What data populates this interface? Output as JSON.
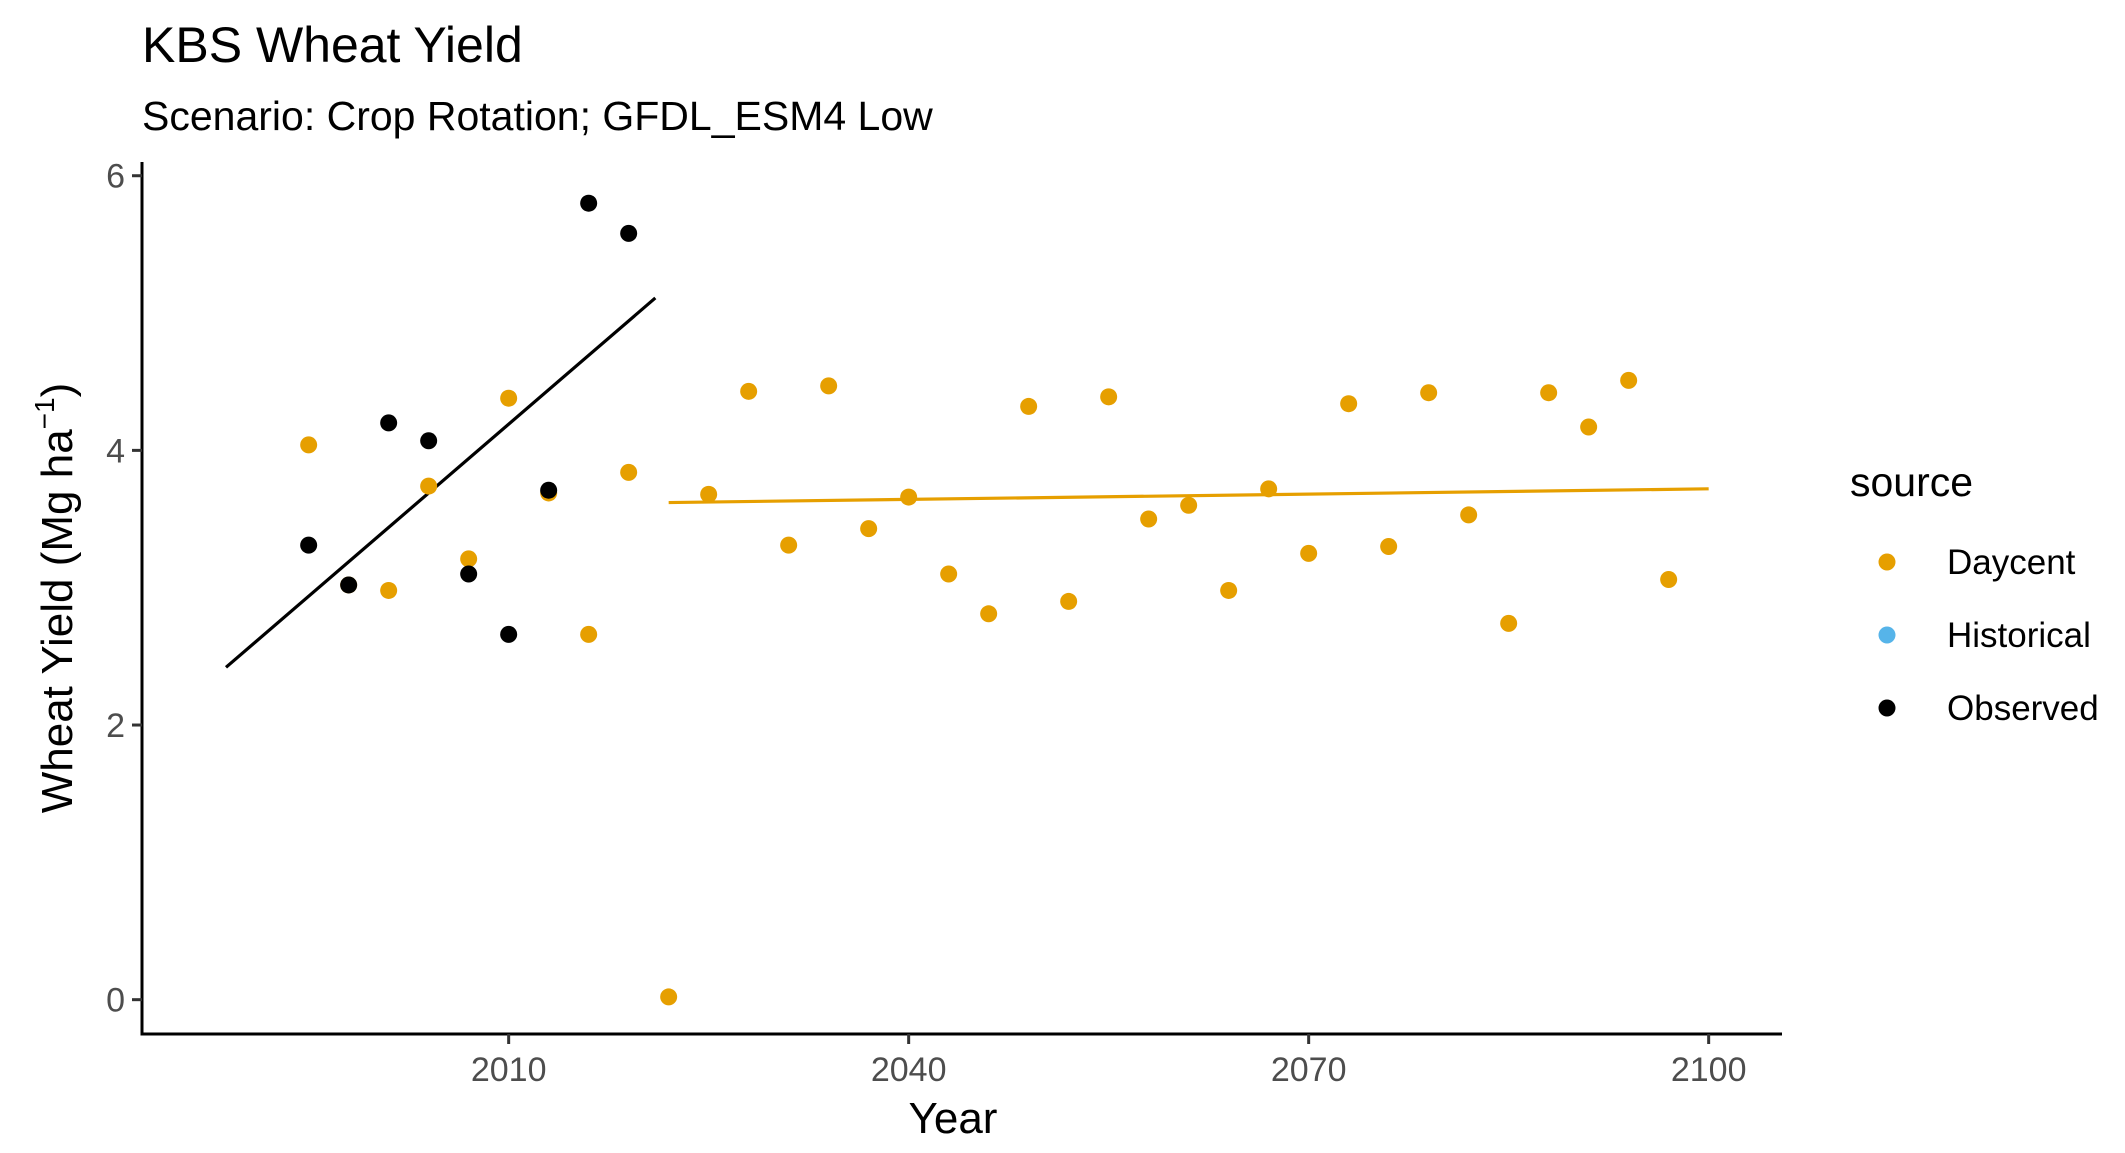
{
  "chart_data": {
    "type": "scatter",
    "title": "KBS Wheat Yield",
    "subtitle": "Scenario: Crop Rotation; GFDL_ESM4 Low",
    "xlabel": "Year",
    "ylabel_main": "Wheat Yield (Mg ha",
    "ylabel_sup": "−1",
    "ylabel_close": ")",
    "xlim": [
      1982.5,
      2105.5
    ],
    "ylim": [
      -0.25,
      6.1
    ],
    "x_ticks": [
      2010,
      2040,
      2070,
      2100
    ],
    "y_ticks": [
      0,
      2,
      4,
      6
    ],
    "grid": false,
    "legend": {
      "title": "source",
      "position": "right"
    },
    "series": [
      {
        "name": "Daycent",
        "color": "#E69F00",
        "points": [
          [
            1995,
            4.04
          ],
          [
            1998,
            3.02
          ],
          [
            2001,
            2.98
          ],
          [
            2004,
            3.74
          ],
          [
            2007,
            3.21
          ],
          [
            2010,
            4.38
          ],
          [
            2013,
            3.69
          ],
          [
            2016,
            2.66
          ],
          [
            2019,
            3.84
          ],
          [
            2022,
            0.02
          ],
          [
            2025,
            3.68
          ],
          [
            2028,
            4.43
          ],
          [
            2031,
            3.31
          ],
          [
            2034,
            4.47
          ],
          [
            2037,
            3.43
          ],
          [
            2040,
            3.66
          ],
          [
            2043,
            3.1
          ],
          [
            2046,
            2.81
          ],
          [
            2049,
            4.32
          ],
          [
            2052,
            2.9
          ],
          [
            2055,
            4.39
          ],
          [
            2058,
            3.5
          ],
          [
            2061,
            3.6
          ],
          [
            2064,
            2.98
          ],
          [
            2067,
            3.72
          ],
          [
            2070,
            3.25
          ],
          [
            2073,
            4.34
          ],
          [
            2076,
            3.3
          ],
          [
            2079,
            4.42
          ],
          [
            2082,
            3.53
          ],
          [
            2085,
            2.74
          ],
          [
            2088,
            4.42
          ],
          [
            2091,
            4.17
          ],
          [
            2094,
            4.51
          ],
          [
            2097,
            3.06
          ]
        ],
        "trend": [
          [
            2022,
            3.62
          ],
          [
            2100,
            3.72
          ]
        ]
      },
      {
        "name": "Historical",
        "color": "#56B4E9",
        "points": []
      },
      {
        "name": "Observed",
        "color": "#000000",
        "points": [
          [
            1995,
            3.31
          ],
          [
            1998,
            3.02
          ],
          [
            2001,
            4.2
          ],
          [
            2004,
            4.07
          ],
          [
            2007,
            3.1
          ],
          [
            2010,
            2.66
          ],
          [
            2013,
            3.71
          ],
          [
            2016,
            5.8
          ],
          [
            2019,
            5.58
          ]
        ],
        "trend": [
          [
            1988.8,
            2.42
          ],
          [
            2021,
            5.11
          ]
        ]
      }
    ]
  }
}
